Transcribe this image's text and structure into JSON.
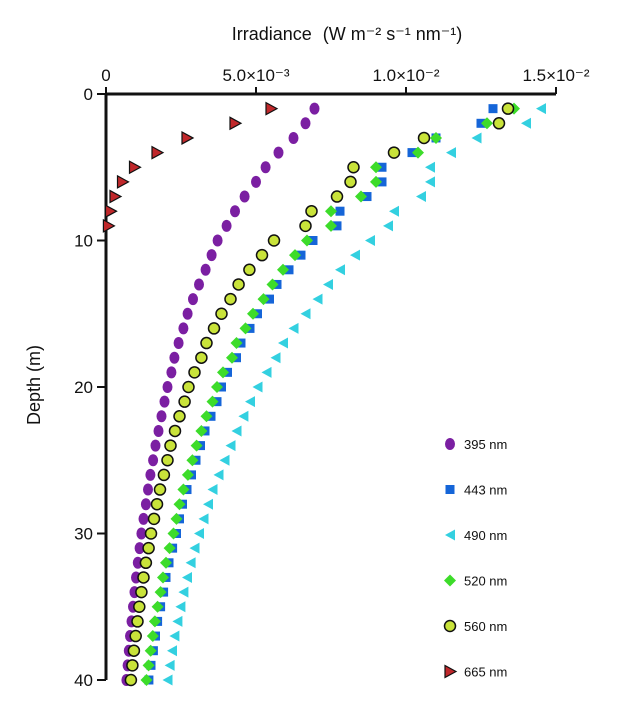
{
  "chart_data": {
    "type": "scatter",
    "title": "",
    "xlabel": "Irradiance",
    "xlabel_unit": "(W m⁻² s⁻¹ nm⁻¹)",
    "ylabel": "Depth (m)",
    "x_axis_position": "top",
    "y_inverted": true,
    "xlim": [
      0,
      0.015
    ],
    "ylim": [
      0,
      40
    ],
    "x_ticks": [
      0,
      0.005,
      0.01,
      0.015
    ],
    "x_tick_labels": [
      "0",
      "5.0×10⁻³",
      "1.0×10⁻²",
      "1.5×10⁻²"
    ],
    "y_ticks": [
      0,
      10,
      20,
      30,
      40
    ],
    "y_tick_labels": [
      "0",
      "10",
      "20",
      "30",
      "40"
    ],
    "grid": false,
    "legend_position": "bottom-right",
    "series": [
      {
        "name": "395 nm",
        "marker": "circle",
        "color": "#7b1fa2",
        "edge": "#7b1fa2",
        "points": [
          [
            1,
            0.00695
          ],
          [
            2,
            0.00665
          ],
          [
            3,
            0.00625
          ],
          [
            4,
            0.00575
          ],
          [
            5,
            0.00532
          ],
          [
            6,
            0.005
          ],
          [
            7,
            0.00462
          ],
          [
            8,
            0.0043
          ],
          [
            9,
            0.00402
          ],
          [
            10,
            0.00372
          ],
          [
            11,
            0.00352
          ],
          [
            12,
            0.00332
          ],
          [
            13,
            0.0031
          ],
          [
            14,
            0.0029
          ],
          [
            15,
            0.00272
          ],
          [
            16,
            0.00258
          ],
          [
            17,
            0.00242
          ],
          [
            18,
            0.00228
          ],
          [
            19,
            0.00218
          ],
          [
            20,
            0.00205
          ],
          [
            21,
            0.00195
          ],
          [
            22,
            0.00185
          ],
          [
            23,
            0.00175
          ],
          [
            24,
            0.00165
          ],
          [
            25,
            0.00157
          ],
          [
            26,
            0.00148
          ],
          [
            27,
            0.0014
          ],
          [
            28,
            0.00133
          ],
          [
            29,
            0.00125
          ],
          [
            30,
            0.00118
          ],
          [
            31,
            0.00112
          ],
          [
            32,
            0.00106
          ],
          [
            33,
            0.001
          ],
          [
            34,
            0.00095
          ],
          [
            35,
            0.0009
          ],
          [
            36,
            0.00085
          ],
          [
            37,
            0.0008
          ],
          [
            38,
            0.00076
          ],
          [
            39,
            0.00072
          ],
          [
            40,
            0.00068
          ]
        ]
      },
      {
        "name": "443 nm",
        "marker": "square",
        "color": "#1565d8",
        "edge": "#1565d8",
        "points": [
          [
            1,
            0.0129
          ],
          [
            2,
            0.0125
          ],
          [
            3,
            0.011
          ],
          [
            4,
            0.0102
          ],
          [
            5,
            0.0092
          ],
          [
            6,
            0.0092
          ],
          [
            7,
            0.0087
          ],
          [
            8,
            0.0078
          ],
          [
            9,
            0.0077
          ],
          [
            10,
            0.0069
          ],
          [
            11,
            0.0065
          ],
          [
            12,
            0.0061
          ],
          [
            13,
            0.0057
          ],
          [
            14,
            0.00545
          ],
          [
            15,
            0.00505
          ],
          [
            16,
            0.0048
          ],
          [
            17,
            0.0045
          ],
          [
            18,
            0.00435
          ],
          [
            19,
            0.00405
          ],
          [
            20,
            0.00385
          ],
          [
            21,
            0.0037
          ],
          [
            22,
            0.0035
          ],
          [
            23,
            0.0033
          ],
          [
            24,
            0.00315
          ],
          [
            25,
            0.003
          ],
          [
            26,
            0.00285
          ],
          [
            27,
            0.0027
          ],
          [
            28,
            0.00255
          ],
          [
            29,
            0.00245
          ],
          [
            30,
            0.00235
          ],
          [
            31,
            0.00222
          ],
          [
            32,
            0.0021
          ],
          [
            33,
            0.002
          ],
          [
            34,
            0.00192
          ],
          [
            35,
            0.00182
          ],
          [
            36,
            0.00172
          ],
          [
            37,
            0.00165
          ],
          [
            38,
            0.00158
          ],
          [
            39,
            0.0015
          ],
          [
            40,
            0.00143
          ]
        ]
      },
      {
        "name": "490 nm",
        "marker": "triangle-left",
        "color": "#33d0e0",
        "edge": "#33d0e0",
        "points": [
          [
            1,
            0.0145
          ],
          [
            2,
            0.014
          ],
          [
            3,
            0.01235
          ],
          [
            4,
            0.0115
          ],
          [
            5,
            0.0108
          ],
          [
            6,
            0.0108
          ],
          [
            7,
            0.0105
          ],
          [
            8,
            0.0096
          ],
          [
            9,
            0.0094
          ],
          [
            10,
            0.0088
          ],
          [
            11,
            0.0083
          ],
          [
            12,
            0.0078
          ],
          [
            13,
            0.0074
          ],
          [
            14,
            0.00705
          ],
          [
            15,
            0.00665
          ],
          [
            16,
            0.00625
          ],
          [
            17,
            0.0059
          ],
          [
            18,
            0.00565
          ],
          [
            19,
            0.00535
          ],
          [
            20,
            0.00505
          ],
          [
            21,
            0.0048
          ],
          [
            22,
            0.00458
          ],
          [
            23,
            0.00435
          ],
          [
            24,
            0.00415
          ],
          [
            25,
            0.00395
          ],
          [
            26,
            0.00375
          ],
          [
            27,
            0.00355
          ],
          [
            28,
            0.0034
          ],
          [
            29,
            0.00325
          ],
          [
            30,
            0.0031
          ],
          [
            31,
            0.00295
          ],
          [
            32,
            0.00282
          ],
          [
            33,
            0.0027
          ],
          [
            34,
            0.00258
          ],
          [
            35,
            0.00248
          ],
          [
            36,
            0.00238
          ],
          [
            37,
            0.00228
          ],
          [
            38,
            0.0022
          ],
          [
            39,
            0.00212
          ],
          [
            40,
            0.00205
          ]
        ]
      },
      {
        "name": "520 nm",
        "marker": "diamond",
        "color": "#3ddc2a",
        "edge": "#3ddc2a",
        "points": [
          [
            1,
            0.0136
          ],
          [
            2,
            0.0127
          ],
          [
            3,
            0.011
          ],
          [
            4,
            0.0104
          ],
          [
            5,
            0.009
          ],
          [
            6,
            0.009
          ],
          [
            7,
            0.0085
          ],
          [
            8,
            0.0075
          ],
          [
            9,
            0.0075
          ],
          [
            10,
            0.0067
          ],
          [
            11,
            0.0063
          ],
          [
            12,
            0.0059
          ],
          [
            13,
            0.00555
          ],
          [
            14,
            0.00525
          ],
          [
            15,
            0.0049
          ],
          [
            16,
            0.00465
          ],
          [
            17,
            0.00435
          ],
          [
            18,
            0.0042
          ],
          [
            19,
            0.0039
          ],
          [
            20,
            0.0037
          ],
          [
            21,
            0.00355
          ],
          [
            22,
            0.00335
          ],
          [
            23,
            0.00318
          ],
          [
            24,
            0.00302
          ],
          [
            25,
            0.00288
          ],
          [
            26,
            0.00273
          ],
          [
            27,
            0.00258
          ],
          [
            28,
            0.00245
          ],
          [
            29,
            0.00235
          ],
          [
            30,
            0.00225
          ],
          [
            31,
            0.00212
          ],
          [
            32,
            0.002
          ],
          [
            33,
            0.0019
          ],
          [
            34,
            0.00182
          ],
          [
            35,
            0.00172
          ],
          [
            36,
            0.00163
          ],
          [
            37,
            0.00156
          ],
          [
            38,
            0.00149
          ],
          [
            39,
            0.00142
          ],
          [
            40,
            0.00135
          ]
        ]
      },
      {
        "name": "560 nm",
        "marker": "circle-open",
        "color": "#c9e33a",
        "edge": "#111111",
        "points": [
          [
            1,
            0.0134
          ],
          [
            2,
            0.0131
          ],
          [
            3,
            0.0106
          ],
          [
            4,
            0.0096
          ],
          [
            5,
            0.00825
          ],
          [
            6,
            0.00815
          ],
          [
            7,
            0.0077
          ],
          [
            8,
            0.00685
          ],
          [
            9,
            0.00665
          ],
          [
            10,
            0.0056
          ],
          [
            11,
            0.0052
          ],
          [
            12,
            0.00478
          ],
          [
            13,
            0.00442
          ],
          [
            14,
            0.00415
          ],
          [
            15,
            0.00385
          ],
          [
            16,
            0.0036
          ],
          [
            17,
            0.00335
          ],
          [
            18,
            0.00318
          ],
          [
            19,
            0.00295
          ],
          [
            20,
            0.00275
          ],
          [
            21,
            0.00262
          ],
          [
            22,
            0.00245
          ],
          [
            23,
            0.0023
          ],
          [
            24,
            0.00215
          ],
          [
            25,
            0.00205
          ],
          [
            26,
            0.00193
          ],
          [
            27,
            0.0018
          ],
          [
            28,
            0.0017
          ],
          [
            29,
            0.0016
          ],
          [
            30,
            0.0015
          ],
          [
            31,
            0.00142
          ],
          [
            32,
            0.00133
          ],
          [
            33,
            0.00125
          ],
          [
            34,
            0.00118
          ],
          [
            35,
            0.00111
          ],
          [
            36,
            0.00105
          ],
          [
            37,
            0.00099
          ],
          [
            38,
            0.00093
          ],
          [
            39,
            0.00088
          ],
          [
            40,
            0.00083
          ]
        ]
      },
      {
        "name": "665 nm",
        "marker": "triangle-right",
        "color": "#c0282b",
        "edge": "#111111",
        "points": [
          [
            1,
            0.0055
          ],
          [
            2,
            0.0043
          ],
          [
            3,
            0.0027
          ],
          [
            4,
            0.0017
          ],
          [
            5,
            0.00095
          ],
          [
            6,
            0.00055
          ],
          [
            7,
            0.0003
          ],
          [
            8,
            0.00015
          ],
          [
            9,
            8e-05
          ]
        ]
      }
    ]
  }
}
